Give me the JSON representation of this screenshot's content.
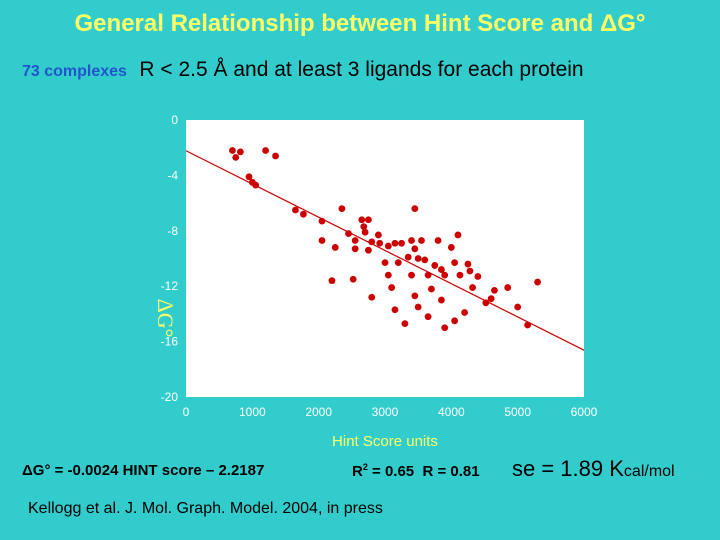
{
  "title": "General Relationship between Hint Score and ΔG°",
  "subtitle": {
    "complexes": "73 complexes",
    "criteria": "R < 2.5 Å and at least 3 ligands for each protein"
  },
  "equation": "ΔG° = -0.0024 HINT score – 2.2187",
  "stats": {
    "r2_prefix": "R",
    "r2_sup": "2",
    "r2_value": " = 0.65",
    "r_text": "R = 0.81"
  },
  "se": {
    "prefix": "se = 1.89 K",
    "unit": "cal/mol"
  },
  "citation": "Kellogg et al. J. Mol. Graph. Model. 2004, in press",
  "colors": {
    "background": "#33CCCC",
    "title": "#FFFF66",
    "plot_bg": "#FFFFFF",
    "points": "#CC0000",
    "fit_line": "#CC0000",
    "complexes_label": "#2255CC"
  },
  "chart_data": {
    "type": "scatter",
    "title": "",
    "xlabel": "Hint Score units",
    "ylabel": "",
    "xlim": [
      0,
      6000
    ],
    "ylim": [
      -20,
      0
    ],
    "x_ticks": [
      "0",
      "1000",
      "2000",
      "3000",
      "4000",
      "5000",
      "6000"
    ],
    "y_ticks": [
      "0",
      "-4",
      "-8",
      "-12",
      "-16",
      "-20"
    ],
    "grid": false,
    "legend": "none",
    "fit_line": {
      "slope": -0.0024,
      "intercept": -2.2187
    },
    "series": [
      {
        "points": [
          [
            700,
            -2.2
          ],
          [
            750,
            -2.7
          ],
          [
            820,
            -2.3
          ],
          [
            1200,
            -2.2
          ],
          [
            1350,
            -2.6
          ],
          [
            950,
            -4.1
          ],
          [
            1000,
            -4.5
          ],
          [
            1050,
            -4.7
          ],
          [
            1650,
            -6.5
          ],
          [
            1770,
            -6.8
          ],
          [
            2050,
            -7.3
          ],
          [
            2350,
            -6.4
          ],
          [
            2450,
            -8.2
          ],
          [
            2650,
            -7.2
          ],
          [
            2750,
            -7.2
          ],
          [
            2680,
            -7.7
          ],
          [
            2700,
            -8.1
          ],
          [
            2050,
            -8.7
          ],
          [
            2250,
            -9.2
          ],
          [
            2550,
            -8.7
          ],
          [
            2550,
            -9.3
          ],
          [
            2800,
            -8.8
          ],
          [
            2750,
            -9.4
          ],
          [
            2900,
            -8.3
          ],
          [
            2920,
            -8.9
          ],
          [
            3050,
            -9.1
          ],
          [
            3150,
            -8.9
          ],
          [
            3250,
            -8.9
          ],
          [
            3400,
            -8.7
          ],
          [
            3450,
            -9.3
          ],
          [
            3350,
            -9.9
          ],
          [
            3550,
            -8.7
          ],
          [
            3450,
            -6.4
          ],
          [
            3800,
            -8.7
          ],
          [
            4000,
            -9.2
          ],
          [
            4100,
            -8.3
          ],
          [
            3000,
            -10.3
          ],
          [
            3050,
            -11.2
          ],
          [
            3200,
            -10.3
          ],
          [
            3100,
            -12.1
          ],
          [
            3400,
            -11.2
          ],
          [
            3500,
            -10.0
          ],
          [
            3600,
            -10.1
          ],
          [
            3650,
            -11.2
          ],
          [
            3750,
            -10.5
          ],
          [
            3850,
            -10.8
          ],
          [
            3900,
            -11.2
          ],
          [
            4050,
            -10.3
          ],
          [
            4130,
            -11.2
          ],
          [
            4250,
            -10.4
          ],
          [
            4280,
            -10.9
          ],
          [
            4400,
            -11.3
          ],
          [
            4320,
            -12.1
          ],
          [
            4520,
            -13.2
          ],
          [
            4200,
            -13.9
          ],
          [
            4050,
            -14.5
          ],
          [
            3900,
            -15.0
          ],
          [
            3650,
            -14.2
          ],
          [
            3850,
            -13.0
          ],
          [
            3700,
            -12.2
          ],
          [
            3500,
            -13.5
          ],
          [
            3450,
            -12.7
          ],
          [
            3300,
            -14.7
          ],
          [
            3150,
            -13.7
          ],
          [
            2800,
            -12.8
          ],
          [
            2520,
            -11.5
          ],
          [
            2200,
            -11.6
          ],
          [
            4600,
            -12.9
          ],
          [
            4650,
            -12.3
          ],
          [
            4850,
            -12.1
          ],
          [
            5000,
            -13.5
          ],
          [
            5300,
            -11.7
          ],
          [
            5150,
            -14.8
          ]
        ]
      }
    ]
  }
}
